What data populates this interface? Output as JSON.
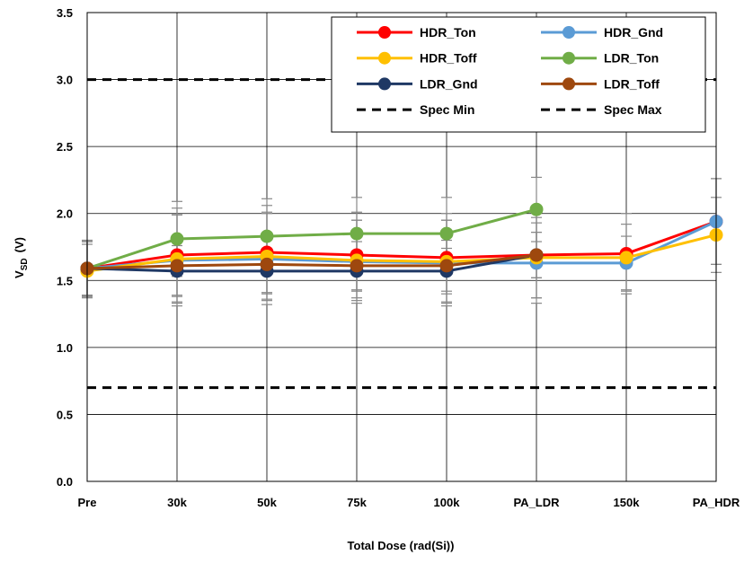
{
  "chart_data": {
    "type": "line",
    "title": "",
    "xlabel": "Total Dose (rad(Si))",
    "ylabel_main": "V",
    "ylabel_sub": "SD",
    "ylabel_unit": "(V)",
    "ylim": [
      0.0,
      3.5
    ],
    "ytick_step": 0.5,
    "yticks": [
      "0.0",
      "0.5",
      "1.0",
      "1.5",
      "2.0",
      "2.5",
      "3.0",
      "3.5"
    ],
    "grid": true,
    "legend_position": "top-right",
    "categories": [
      "Pre",
      "30k",
      "50k",
      "75k",
      "100k",
      "PA_LDR",
      "150k",
      "PA_HDR"
    ],
    "series": [
      {
        "name": "HDR_Ton",
        "color": "#ff0000",
        "values": [
          1.59,
          1.69,
          1.71,
          1.69,
          1.67,
          1.69,
          1.7,
          1.94
        ],
        "errors": [
          0.21,
          0.35,
          0.35,
          0.32,
          0.33,
          0.32,
          0.3,
          0.32
        ]
      },
      {
        "name": "HDR_Gnd",
        "color": "#5b9bd5",
        "values": [
          1.59,
          1.65,
          1.66,
          1.64,
          1.63,
          1.63,
          1.63,
          1.94
        ],
        "errors": [
          0.21,
          0.34,
          0.34,
          0.31,
          0.32,
          0.3,
          0.2,
          0.32
        ]
      },
      {
        "name": "HDR_Toff",
        "color": "#ffc000",
        "values": [
          1.57,
          1.66,
          1.68,
          1.65,
          1.64,
          1.67,
          1.67,
          1.84
        ],
        "errors": [
          0.2,
          0.33,
          0.33,
          0.3,
          0.31,
          0.3,
          0.25,
          0.28
        ]
      },
      {
        "name": "LDR_Ton",
        "color": "#70ad47",
        "values": [
          1.59,
          1.81,
          1.83,
          1.85,
          1.85,
          2.03,
          null,
          null
        ],
        "errors": [
          0.2,
          0.28,
          0.28,
          0.27,
          0.27,
          0.24,
          null,
          null
        ]
      },
      {
        "name": "LDR_Gnd",
        "color": "#1f3864",
        "values": [
          1.59,
          1.57,
          1.57,
          1.57,
          1.57,
          1.69,
          null,
          null
        ],
        "errors": [
          0.2,
          0.19,
          0.17,
          0.15,
          0.17,
          0.17,
          null,
          null
        ]
      },
      {
        "name": "LDR_Toff",
        "color": "#9e480e",
        "values": [
          1.59,
          1.61,
          1.62,
          1.61,
          1.61,
          1.69,
          null,
          null
        ],
        "errors": [
          0.2,
          0.22,
          0.21,
          0.18,
          0.19,
          0.17,
          null,
          null
        ]
      }
    ],
    "reference_lines": [
      {
        "name": "Spec Min",
        "value": 0.7,
        "color": "#000000"
      },
      {
        "name": "Spec Max",
        "value": 3.0,
        "color": "#000000"
      }
    ],
    "legend_order": [
      "HDR_Ton",
      "HDR_Gnd",
      "HDR_Toff",
      "LDR_Ton",
      "LDR_Gnd",
      "LDR_Toff",
      "Spec Min",
      "Spec Max"
    ]
  }
}
